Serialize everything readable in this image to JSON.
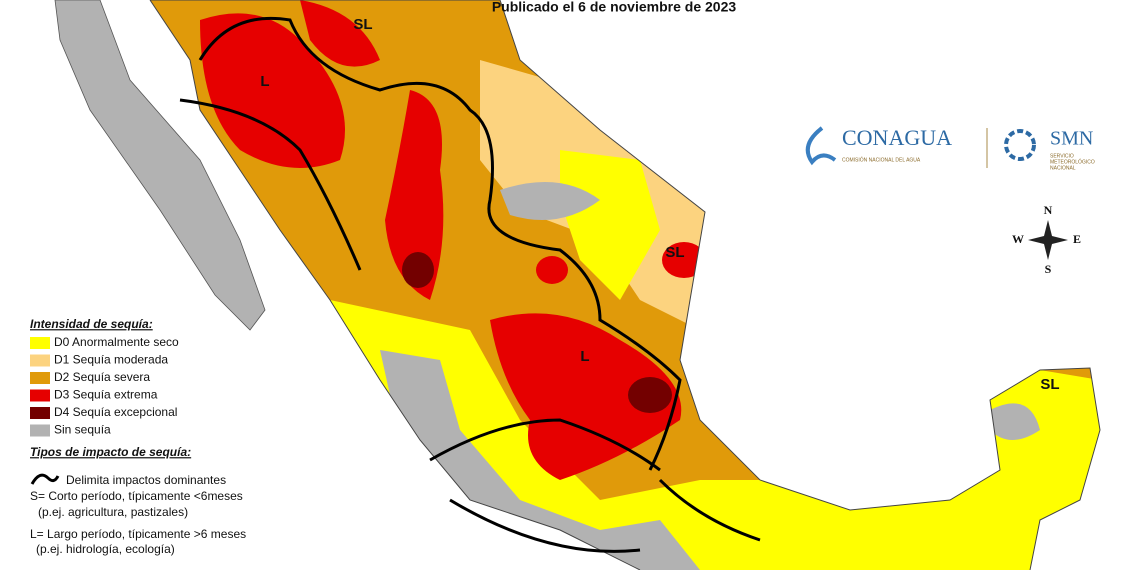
{
  "header": {
    "published": "Publicado el 6 de noviembre de 2023"
  },
  "logos": {
    "conagua": "CONAGUA",
    "conagua_sub": "COMISIÓN NACIONAL DEL AGUA",
    "smn": "SMN",
    "smn_sub": [
      "SERVICIO",
      "METEOROLÓGICO",
      "NACIONAL"
    ]
  },
  "compass": {
    "n": "N",
    "s": "S",
    "e": "E",
    "w": "W"
  },
  "map_labels": [
    "SL",
    "L",
    "SL",
    "L",
    "SL"
  ],
  "legend": {
    "intensity_title": "Intensidad de sequía:",
    "intensity_items": [
      {
        "label": "D0 Anormalmente seco",
        "color": "#ffff00"
      },
      {
        "label": "D1 Sequía moderada",
        "color": "#fcd37f"
      },
      {
        "label": "D2 Sequía severa",
        "color": "#e09a0a"
      },
      {
        "label": "D3 Sequía extrema",
        "color": "#e60000"
      },
      {
        "label": "D4 Sequía excepcional",
        "color": "#730000"
      },
      {
        "label": "Sin sequía",
        "color": "#b2b2b2"
      }
    ],
    "impact_title": "Tipos de impacto de sequía:",
    "impact_items": [
      "Delimita impactos dominantes",
      "S= Corto período, típicamente <6meses",
      "(p.ej. agricultura, pastizales)",
      "L= Largo período, típicamente >6 meses",
      "(p.ej. hidrología, ecología)"
    ]
  }
}
